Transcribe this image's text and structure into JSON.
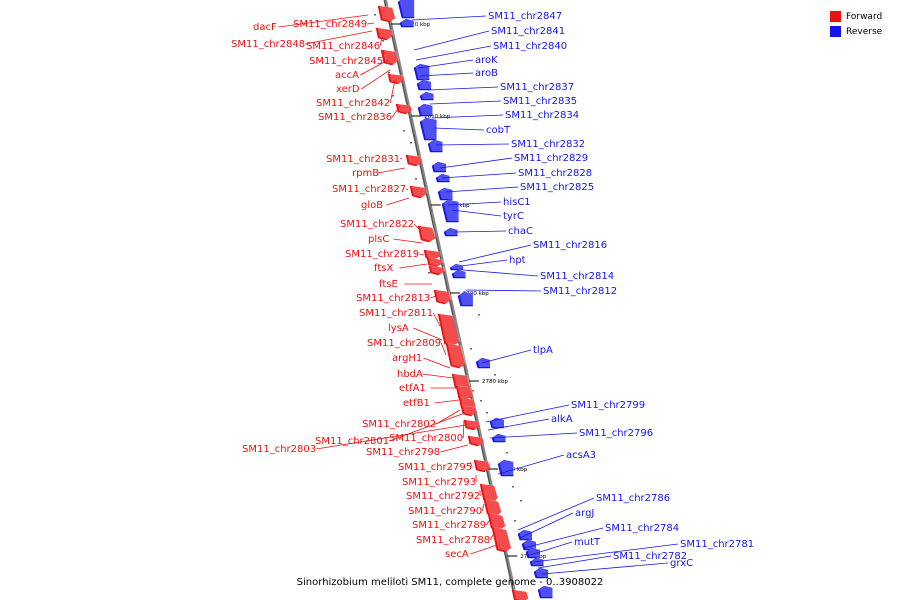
{
  "legend": {
    "forward_label": "Forward",
    "reverse_label": "Reverse"
  },
  "colors": {
    "forward": "#ee1111",
    "reverse": "#1515ee",
    "axis": "#888888"
  },
  "footer": {
    "label": "Sinorhizobium meliloti SM11, complete genome - 0..3908022"
  },
  "ruler_ticks": [
    "2820 kbp",
    "2810 kbp",
    "2800 kbp",
    "2790 kbp",
    "2780 kbp",
    "2770 kbp",
    "2760 kbp"
  ],
  "genes_left": [
    "dacF",
    "SM11_chr2849",
    "SM11_chr2848",
    "SM11_chr2846",
    "SM11_chr2845",
    "accA",
    "xerD",
    "SM11_chr2842",
    "SM11_chr2836",
    "SM11_chr2831",
    "rpmB",
    "SM11_chr2827",
    "gloB",
    "SM11_chr2822",
    "plsC",
    "SM11_chr2819",
    "ftsX",
    "ftsE",
    "SM11_chr2813",
    "SM11_chr2811",
    "lysA",
    "SM11_chr2809",
    "argH1",
    "hbdA",
    "etfA1",
    "etfB1",
    "SM11_chr2802",
    "SM11_chr2801",
    "SM11_chr2800",
    "SM11_chr2803",
    "SM11_chr2798",
    "SM11_chr2795",
    "SM11_chr2793",
    "SM11_chr2792",
    "SM11_chr2790",
    "SM11_chr2789",
    "SM11_chr2788",
    "secA"
  ],
  "genes_right": [
    "SM11_chr2847",
    "SM11_chr2841",
    "SM11_chr2840",
    "aroK",
    "aroB",
    "SM11_chr2837",
    "SM11_chr2835",
    "SM11_chr2834",
    "cobT",
    "SM11_chr2832",
    "SM11_chr2829",
    "SM11_chr2828",
    "SM11_chr2825",
    "hisC1",
    "tyrC",
    "chaC",
    "SM11_chr2816",
    "hpt",
    "SM11_chr2814",
    "SM11_chr2812",
    "tlpA",
    "SM11_chr2799",
    "alkA",
    "SM11_chr2796",
    "acsA3",
    "SM11_chr2786",
    "argJ",
    "SM11_chr2784",
    "mutT",
    "SM11_chr2781",
    "SM11_chr2782",
    "grxC"
  ]
}
